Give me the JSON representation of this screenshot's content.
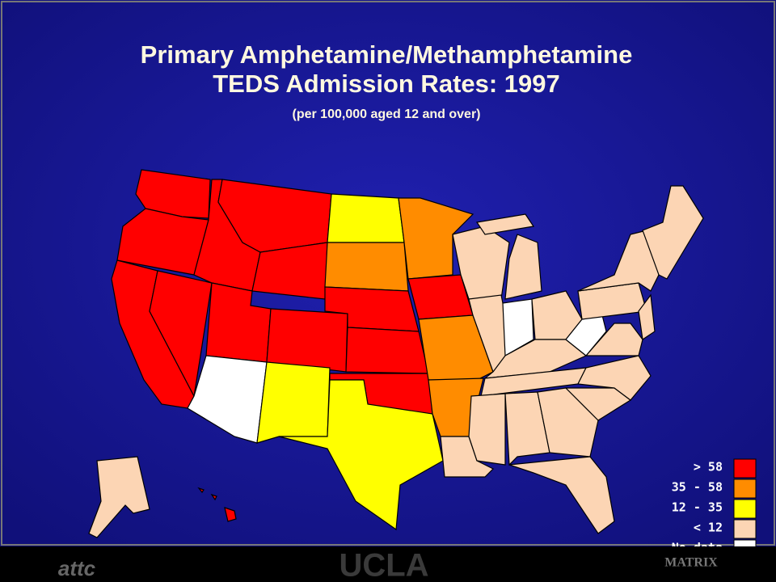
{
  "header": {
    "title_line1": "Primary Amphetamine/Methamphetamine",
    "title_line2": "TEDS Admission Rates: 1997",
    "subtitle": "(per 100,000 aged 12 and over)"
  },
  "legend": [
    {
      "label": "> 58",
      "color": "#ff0000"
    },
    {
      "label": "35 - 58",
      "color": "#ff8c00"
    },
    {
      "label": "12 - 35",
      "color": "#ffff00"
    },
    {
      "label": "< 12",
      "color": "#fcd5b4"
    },
    {
      "label": "No data",
      "color": "#ffffff"
    }
  ],
  "footer": {
    "left_logo": "attc",
    "center_logo": "UCLA",
    "right_logo": "MATRIX"
  }
}
